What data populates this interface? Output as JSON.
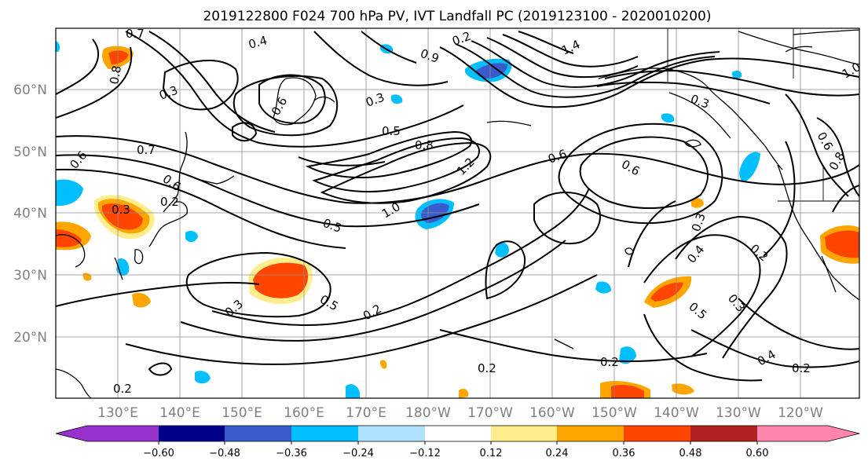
{
  "title": "2019122800 F024 700 hPa PV, IVT Landfall PC (2019123100 - 2020010200)",
  "lat_labels": [
    "20°N",
    "30°N",
    "40°N",
    "50°N",
    "60°N"
  ],
  "lon_labels": [
    "130°E",
    "140°E",
    "150°E",
    "160°E",
    "170°E",
    "180°W",
    "170°W",
    "160°W",
    "150°W",
    "140°W",
    "130°W",
    "120°W"
  ],
  "colorbar": {
    "colors": [
      "#9932cc",
      "#00008b",
      "#3a5bcc",
      "#00bfff",
      "#b0e2ff",
      "#ffffff",
      "#ffec8b",
      "#ffa500",
      "#ff4500",
      "#b22222",
      "#ff85ad"
    ],
    "tick_labels": [
      "−0.60",
      "−0.48",
      "−0.36",
      "−0.24",
      "−0.12",
      "0.12",
      "0.24",
      "0.36",
      "0.48",
      "0.60"
    ]
  },
  "contour_labels": [
    {
      "text": "0.7"
    },
    {
      "text": "0.8"
    },
    {
      "text": "0.4"
    },
    {
      "text": "0.3"
    },
    {
      "text": "0.6"
    },
    {
      "text": "0.3"
    },
    {
      "text": "0.5"
    },
    {
      "text": "0.8"
    },
    {
      "text": "1.2"
    },
    {
      "text": "1.0"
    },
    {
      "text": "0.2"
    },
    {
      "text": "1.4"
    },
    {
      "text": "0.9"
    },
    {
      "text": "0.6"
    },
    {
      "text": "0.6"
    },
    {
      "text": "0.3"
    },
    {
      "text": "0.7"
    },
    {
      "text": "0.6"
    },
    {
      "text": "0.6"
    },
    {
      "text": "0.2"
    },
    {
      "text": "0.5"
    },
    {
      "text": "0.3"
    },
    {
      "text": "0.4"
    },
    {
      "text": "0.2"
    },
    {
      "text": "0.3"
    },
    {
      "text": "0.5"
    },
    {
      "text": "0.2"
    },
    {
      "text": "0.5"
    },
    {
      "text": "0.3"
    },
    {
      "text": "0.4"
    },
    {
      "text": "0.2"
    },
    {
      "text": "0.2"
    },
    {
      "text": "0.2"
    },
    {
      "text": "0.2"
    },
    {
      "text": "0.6"
    },
    {
      "text": "0.8"
    },
    {
      "text": "1.0"
    },
    {
      "text": "0.3"
    }
  ]
}
